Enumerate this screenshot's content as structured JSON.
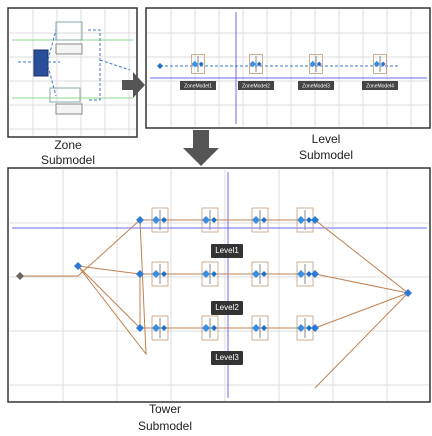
{
  "panels": {
    "zone": {
      "caption": [
        "Zone",
        "Submodel"
      ]
    },
    "level": {
      "caption": [
        "Level",
        "Submodel"
      ],
      "zone_labels": [
        "ZoneModel1",
        "ZoneModel2",
        "ZoneModel3",
        "ZoneModel4"
      ]
    },
    "tower": {
      "caption": [
        "Tower",
        "Submodel"
      ],
      "level_labels": [
        "Level1",
        "Level2",
        "Level3"
      ]
    }
  }
}
